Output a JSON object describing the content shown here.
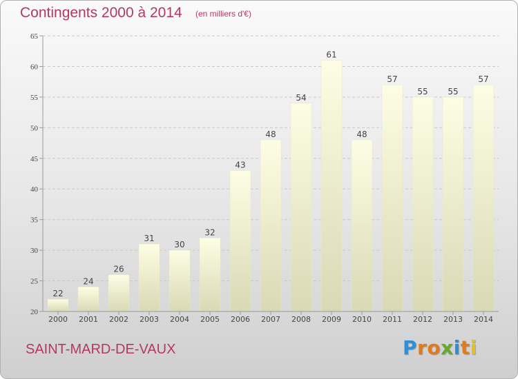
{
  "chart_data": {
    "type": "bar",
    "title": "Contingents 2000 à 2014",
    "subtitle": "(en milliers d'€)",
    "categories": [
      "2000",
      "2001",
      "2002",
      "2003",
      "2004",
      "2005",
      "2006",
      "2007",
      "2008",
      "2009",
      "2010",
      "2011",
      "2012",
      "2013",
      "2014"
    ],
    "values": [
      22,
      24,
      26,
      31,
      30,
      32,
      43,
      48,
      54,
      61,
      48,
      57,
      55,
      55,
      57
    ],
    "ylim": [
      20,
      65
    ],
    "yticks": [
      20,
      25,
      30,
      35,
      40,
      45,
      50,
      55,
      60,
      65
    ],
    "xlabel": "",
    "ylabel": "",
    "grid": true,
    "data_labels": true,
    "colors": {
      "bar_light": "#fbfbdc",
      "bar_dark": "#d8d8b4",
      "grid": "#c8c8c8",
      "axis": "#999999",
      "text": "#444444",
      "accent": "#b5385f"
    }
  },
  "footer": {
    "commune": "SAINT-MARD-DE-VAUX",
    "logo_letters": [
      {
        "ch": "P",
        "color": "#2f8fd6"
      },
      {
        "ch": "r",
        "color": "#e07a1f"
      },
      {
        "ch": "o",
        "color": "#e07a1f"
      },
      {
        "ch": "x",
        "color": "#6aa82d"
      },
      {
        "ch": "i",
        "color": "#2f8fd6"
      },
      {
        "ch": "t",
        "color": "#e07a1f"
      },
      {
        "ch": "i",
        "color": "#e0c21f"
      }
    ]
  }
}
